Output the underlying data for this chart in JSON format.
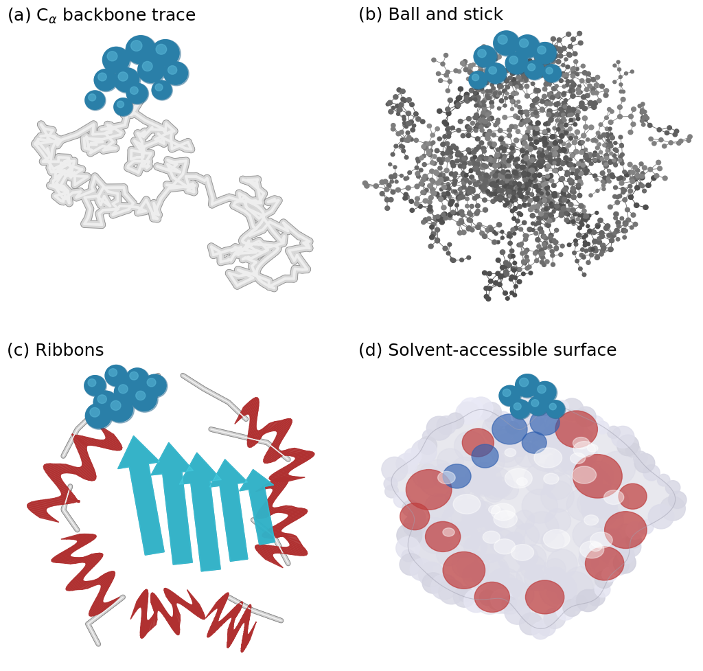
{
  "title_a": "(a) C$_{\\alpha}$ backbone trace",
  "title_b": "(b) Ball and stick",
  "title_c": "(c) Ribbons",
  "title_d": "(d) Solvent-accessible surface",
  "title_fontsize": 18,
  "bg_color": "#ffffff",
  "gray_tube": "#c8c8c8",
  "gray_tube2": "#b0b0b0",
  "blue_main": "#2a7fa8",
  "blue_light": "#5ab8d8",
  "blue_dark": "#1a5f88",
  "red_main": "#b03030",
  "cyan_main": "#20a0b8",
  "cyan_light": "#40c8e0"
}
